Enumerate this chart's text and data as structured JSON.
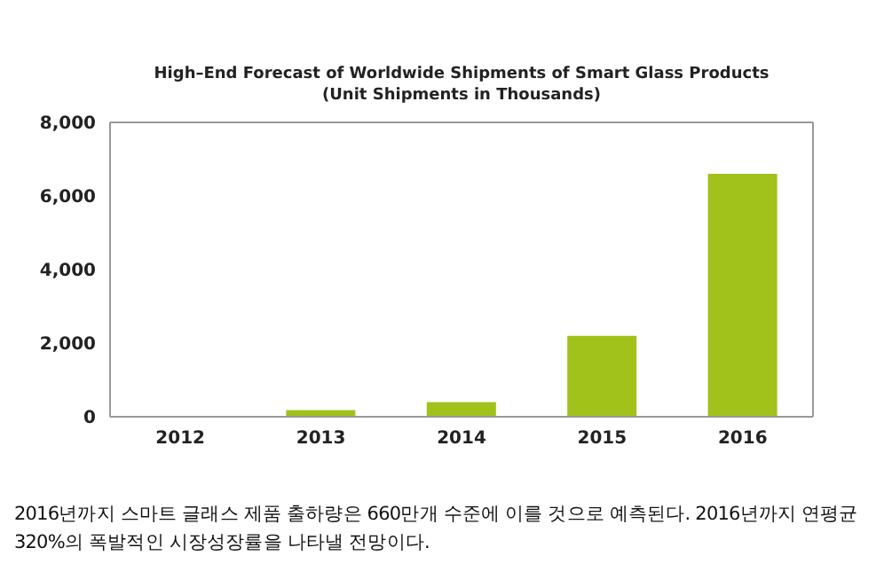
{
  "chart_data": {
    "type": "bar",
    "title": "High–End Forecast of Worldwide Shipments of Smart Glass Products",
    "subtitle": "(Unit Shipments in Thousands)",
    "categories": [
      "2012",
      "2013",
      "2014",
      "2015",
      "2016"
    ],
    "values": [
      0,
      180,
      400,
      2200,
      6600
    ],
    "color": "#a0c21a",
    "ylim": [
      0,
      8000
    ],
    "yticks": [
      {
        "value": 0,
        "label": "0"
      },
      {
        "value": 2000,
        "label": "2,000"
      },
      {
        "value": 4000,
        "label": "4,000"
      },
      {
        "value": 6000,
        "label": "6,000"
      },
      {
        "value": 8000,
        "label": "8,000"
      }
    ],
    "grid": false,
    "annotations": [
      "2016년까지 스마트 글래스 제품 출하량은 660만개 수준에 이를 것으로 예측된다. 2016년까지 연평균 320%의 폭발적인 시장성장률을 나타낼 전망이다."
    ]
  }
}
